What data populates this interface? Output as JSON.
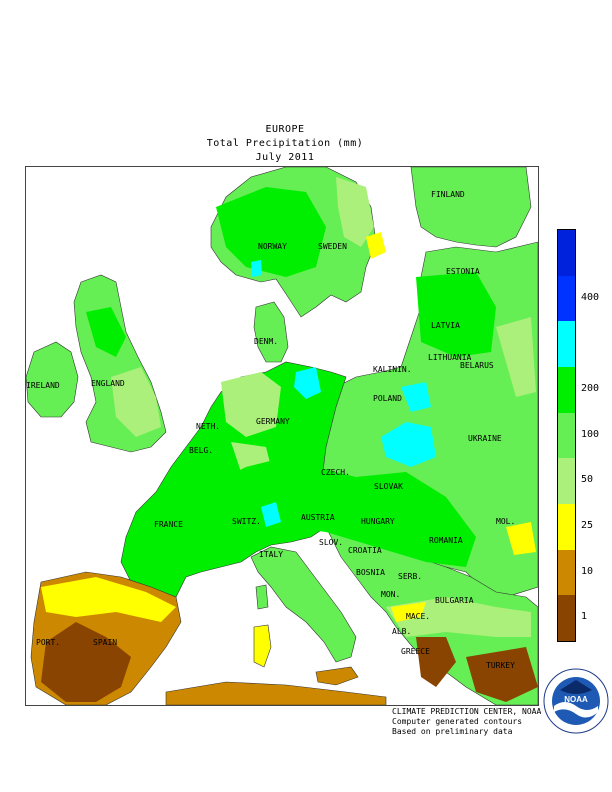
{
  "header": {
    "region": "EUROPE",
    "variable": "Total Precipitation (mm)",
    "period": "July 2011"
  },
  "legend": {
    "bands": [
      {
        "label": "",
        "color": "#0022dd"
      },
      {
        "label": "400",
        "color": "#0033ff"
      },
      {
        "label": "",
        "color": "#00ffff"
      },
      {
        "label": "200",
        "color": "#00ee00"
      },
      {
        "label": "100",
        "color": "#66ee55"
      },
      {
        "label": "50",
        "color": "#aaf07a"
      },
      {
        "label": "25",
        "color": "#ffff00"
      },
      {
        "label": "10",
        "color": "#cc8800"
      },
      {
        "label": "1",
        "color": "#884400"
      }
    ]
  },
  "countries": {
    "finland": "FINLAND",
    "norway": "NORWAY",
    "sweden": "SWEDEN",
    "estonia": "ESTONIA",
    "latvia": "LATVIA",
    "denmark": "DENM.",
    "lithuania": "LITHUANIA",
    "kaliningrad": "KALININ.",
    "belarus": "BELARUS",
    "ireland": "IRELAND",
    "england": "ENGLAND",
    "netherlands": "NETH.",
    "germany": "GERMANY",
    "poland": "POLAND",
    "belgium": "BELG.",
    "czech": "CZECH.",
    "ukraine": "UKRAINE",
    "slovakia": "SLOVAK",
    "france": "FRANCE",
    "austria": "AUSTRIA",
    "hungary": "HUNGARY",
    "moldova": "MOL.",
    "switzerland": "SWITZ.",
    "slovenia": "SLOV.",
    "croatia": "CROATIA",
    "romania": "ROMANIA",
    "italy": "ITALY",
    "bosnia": "BOSNIA",
    "serbia": "SERB.",
    "bulgaria": "BULGARIA",
    "montenegro": "MON.",
    "macedonia": "MACE.",
    "portugal": "PORT.",
    "spain": "SPAIN",
    "albania": "ALB.",
    "greece": "GREECE",
    "turkey": "TURKEY"
  },
  "credits": {
    "line1": "CLIMATE PREDICTION CENTER, NOAA",
    "line2": "Computer generated contours",
    "line3": "Based on preliminary data"
  },
  "logo": {
    "text": "NOAA",
    "ring_text": "NATIONAL OCEANIC AND ATMOSPHERIC ADMINISTRATION · U.S. DEPARTMENT OF COMMERCE"
  }
}
